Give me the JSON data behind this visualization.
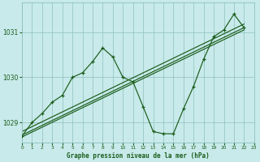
{
  "title": "Graphe pression niveau de la mer (hPa)",
  "bg_color": "#c8eaea",
  "grid_color": "#8fbfbf",
  "line_color": "#1a5c1a",
  "xlim": [
    0,
    23
  ],
  "ylim": [
    1028.55,
    1031.65
  ],
  "yticks": [
    1029,
    1030,
    1031
  ],
  "xticks": [
    0,
    1,
    2,
    3,
    4,
    5,
    6,
    7,
    8,
    9,
    10,
    11,
    12,
    13,
    14,
    15,
    16,
    17,
    18,
    19,
    20,
    21,
    22,
    23
  ],
  "main_x": [
    0,
    1,
    2,
    3,
    4,
    5,
    6,
    7,
    8,
    9,
    10,
    11,
    12,
    13,
    14,
    15,
    16,
    17,
    18,
    19,
    20,
    21,
    22
  ],
  "main_y": [
    1028.7,
    1029.0,
    1029.2,
    1029.45,
    1029.6,
    1030.0,
    1030.1,
    1030.35,
    1030.65,
    1030.45,
    1030.0,
    1029.9,
    1029.35,
    1028.8,
    1028.75,
    1028.75,
    1029.3,
    1029.8,
    1030.4,
    1030.9,
    1031.05,
    1031.4,
    1031.1
  ],
  "trend_lines": [
    [
      0,
      1028.68,
      22,
      1031.05
    ],
    [
      0,
      1028.72,
      22,
      1031.1
    ],
    [
      0,
      1028.8,
      22,
      1031.18
    ]
  ]
}
